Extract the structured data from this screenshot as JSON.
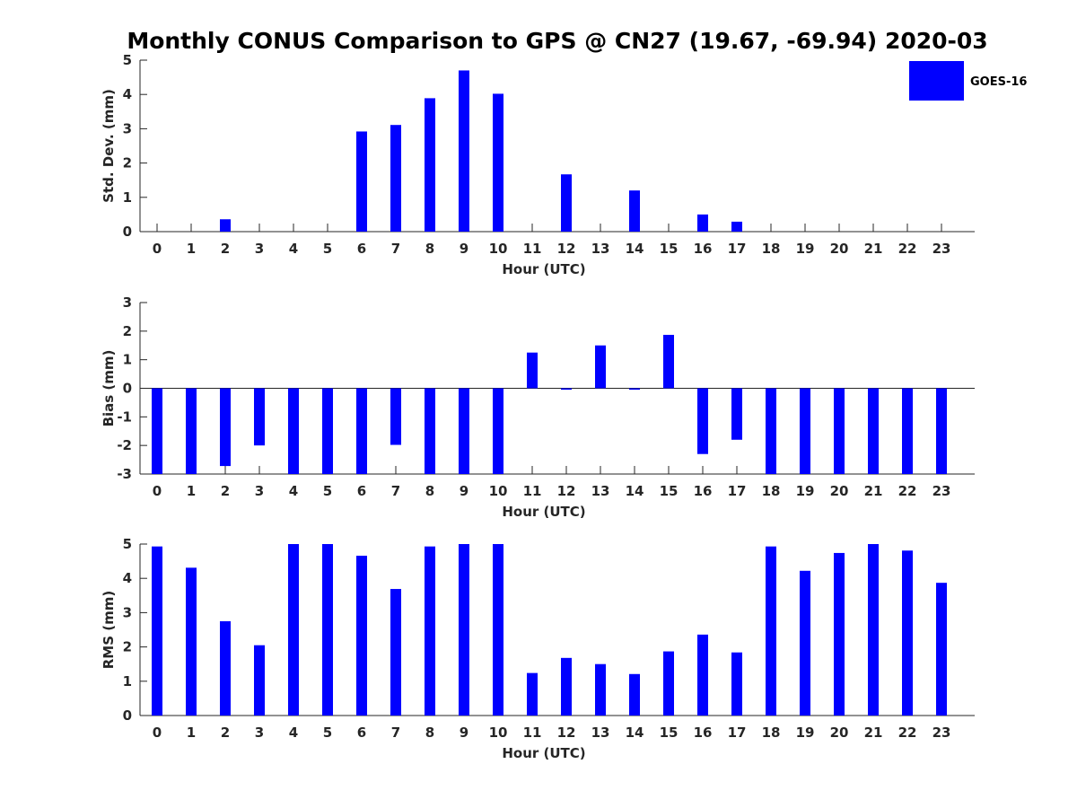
{
  "title": "Monthly CONUS Comparison to GPS @ CN27 (19.67, -69.94) 2020-03",
  "legend": {
    "label": "GOES-16",
    "color": "#0000ff"
  },
  "chart_data": [
    {
      "type": "bar",
      "title": "Monthly CONUS Comparison to GPS @ CN27 (19.67, -69.94) 2020-03",
      "xlabel": "Hour (UTC)",
      "ylabel": "Std. Dev. (mm)",
      "ylim": [
        0,
        5
      ],
      "yticks": [
        "0",
        "1",
        "2",
        "3",
        "4",
        "5"
      ],
      "categories": [
        "0",
        "1",
        "2",
        "3",
        "4",
        "5",
        "6",
        "7",
        "8",
        "9",
        "10",
        "11",
        "12",
        "13",
        "14",
        "15",
        "16",
        "17",
        "18",
        "19",
        "20",
        "21",
        "22",
        "23"
      ],
      "series": [
        {
          "name": "GOES-16",
          "color": "#0000ff",
          "values": [
            null,
            null,
            0.36,
            null,
            null,
            null,
            2.92,
            3.11,
            3.89,
            4.7,
            4.02,
            null,
            1.67,
            null,
            1.2,
            null,
            0.5,
            0.29,
            null,
            null,
            null,
            null,
            null,
            null
          ]
        }
      ]
    },
    {
      "type": "bar",
      "title": "",
      "xlabel": "Hour (UTC)",
      "ylabel": "Bias (mm)",
      "ylim": [
        -3,
        3
      ],
      "yticks": [
        "-3",
        "-2",
        "-1",
        "0",
        "1",
        "2",
        "3"
      ],
      "categories": [
        "0",
        "1",
        "2",
        "3",
        "4",
        "5",
        "6",
        "7",
        "8",
        "9",
        "10",
        "11",
        "12",
        "13",
        "14",
        "15",
        "16",
        "17",
        "18",
        "19",
        "20",
        "21",
        "22",
        "23"
      ],
      "series": [
        {
          "name": "GOES-16",
          "color": "#0000ff",
          "values": [
            -3.2,
            -3.2,
            -2.72,
            -2.0,
            -3.2,
            -3.2,
            -3.2,
            -1.98,
            -3.2,
            -3.2,
            -3.2,
            1.25,
            -0.05,
            1.5,
            -0.05,
            1.87,
            -2.3,
            -1.8,
            -3.2,
            -3.2,
            -3.2,
            -3.2,
            -3.2,
            -3.2
          ]
        }
      ]
    },
    {
      "type": "bar",
      "title": "",
      "xlabel": "Hour (UTC)",
      "ylabel": "RMS (mm)",
      "ylim": [
        0,
        5
      ],
      "yticks": [
        "0",
        "1",
        "2",
        "3",
        "4",
        "5"
      ],
      "categories": [
        "0",
        "1",
        "2",
        "3",
        "4",
        "5",
        "6",
        "7",
        "8",
        "9",
        "10",
        "11",
        "12",
        "13",
        "14",
        "15",
        "16",
        "17",
        "18",
        "19",
        "20",
        "21",
        "22",
        "23"
      ],
      "series": [
        {
          "name": "GOES-16",
          "color": "#0000ff",
          "values": [
            4.93,
            4.31,
            2.75,
            2.05,
            5.2,
            5.2,
            4.66,
            3.69,
            4.93,
            5.2,
            5.2,
            1.24,
            1.68,
            1.5,
            1.21,
            1.87,
            2.36,
            1.84,
            4.93,
            4.22,
            4.74,
            5.2,
            4.81,
            3.87
          ]
        }
      ]
    }
  ]
}
